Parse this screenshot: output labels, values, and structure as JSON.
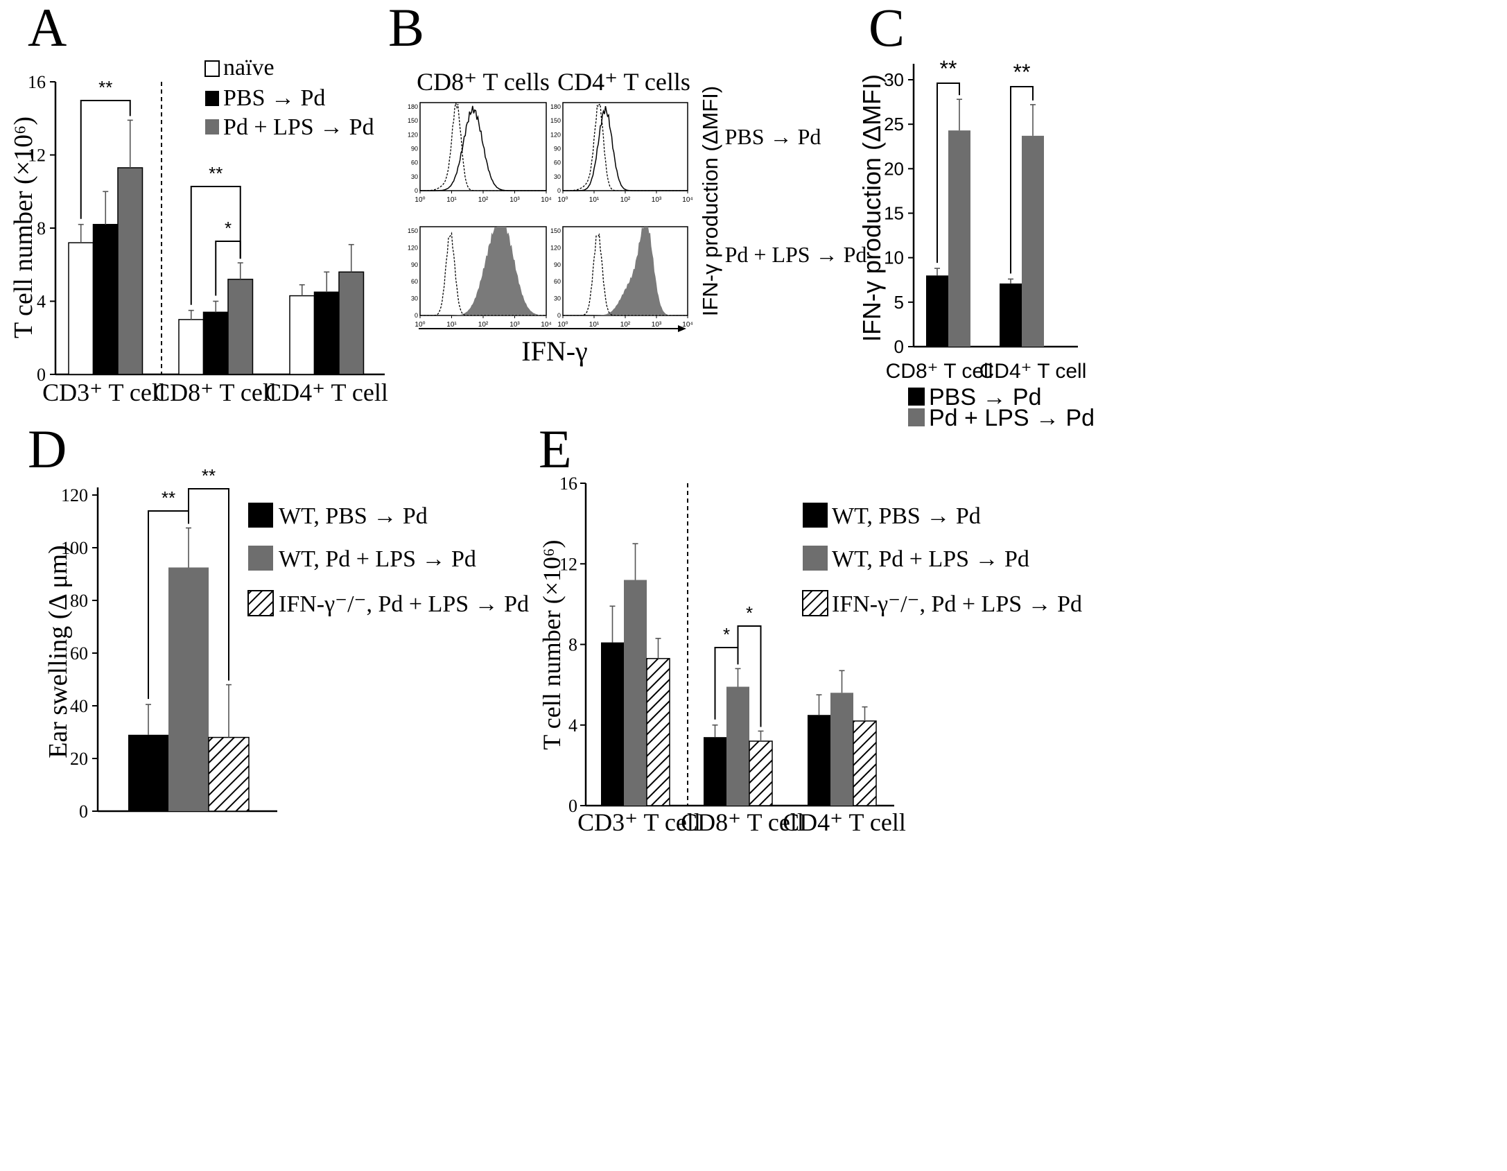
{
  "colors": {
    "naive": "#ffffff",
    "pbs": "#000000",
    "lps": "#6e6e6e",
    "ko": "hatch-diagonal"
  },
  "chart_data": [
    {
      "panel": "A",
      "type": "bar",
      "panel_label": "A",
      "ylabel": "T cell number (×10⁶)",
      "xlabel": "",
      "ylim": [
        0,
        16
      ],
      "yticks": [
        "0",
        "4",
        "8",
        "12",
        "16"
      ],
      "categories": [
        "CD3⁺ T cell",
        "CD8⁺ T cell",
        "CD4⁺ T cell"
      ],
      "legend": [
        "naïve",
        "PBS → Pd",
        "Pd + LPS → Pd"
      ],
      "series": [
        {
          "name": "naïve",
          "values": [
            7.2,
            3.0,
            4.3
          ],
          "errors": [
            1.0,
            0.5,
            0.6
          ]
        },
        {
          "name": "PBS → Pd",
          "values": [
            8.2,
            3.4,
            4.5
          ],
          "errors": [
            1.8,
            0.6,
            1.1
          ]
        },
        {
          "name": "Pd + LPS → Pd",
          "values": [
            11.3,
            5.2,
            5.6
          ],
          "errors": [
            2.6,
            0.9,
            1.5
          ]
        }
      ],
      "significance": [
        {
          "label": "**",
          "category": 0,
          "from": 0,
          "to": 2
        },
        {
          "label": "**",
          "category": 1,
          "from": 0,
          "to": 2
        },
        {
          "label": "*",
          "category": 1,
          "from": 1,
          "to": 2
        }
      ]
    },
    {
      "panel": "B",
      "type": "histogram",
      "panel_label": "B",
      "column_titles": [
        "CD8⁺ T cells",
        "CD4⁺ T cells"
      ],
      "row_labels": [
        "PBS → Pd",
        "Pd + LPS → Pd"
      ],
      "xlabel": "IFN-γ",
      "side_label": "IFN-γ production (ΔMFI)",
      "xticks": [
        "10⁰",
        "10¹",
        "10²",
        "10³",
        "10⁴"
      ],
      "yticks_top": [
        "0",
        "30",
        "60",
        "90",
        "120",
        "150",
        "180"
      ],
      "yticks_bottom": [
        "0",
        "30",
        "60",
        "90",
        "120",
        "150"
      ]
    },
    {
      "panel": "C",
      "type": "bar",
      "panel_label": "C",
      "ylabel": "IFN-γ production (ΔMFI)",
      "ylim": [
        0,
        30
      ],
      "yticks": [
        "0",
        "5",
        "10",
        "15",
        "20",
        "25",
        "30"
      ],
      "categories": [
        "CD8⁺ T cell",
        "CD4⁺ T cell"
      ],
      "legend": [
        "PBS → Pd",
        "Pd + LPS → Pd"
      ],
      "series": [
        {
          "name": "PBS → Pd",
          "values": [
            8.0,
            7.1
          ],
          "errors": [
            0.8,
            0.5
          ]
        },
        {
          "name": "Pd + LPS → Pd",
          "values": [
            24.3,
            23.7
          ],
          "errors": [
            3.5,
            3.5
          ]
        }
      ],
      "significance": [
        {
          "label": "**",
          "category": 0,
          "from": 0,
          "to": 1
        },
        {
          "label": "**",
          "category": 1,
          "from": 0,
          "to": 1
        }
      ]
    },
    {
      "panel": "D",
      "type": "bar",
      "panel_label": "D",
      "ylabel": "Ear swelling (Δ μm)",
      "ylim": [
        0,
        120
      ],
      "yticks": [
        "0",
        "20",
        "40",
        "60",
        "80",
        "100",
        "120"
      ],
      "categories": [
        ""
      ],
      "legend": [
        "WT, PBS → Pd",
        "WT, Pd + LPS → Pd",
        "IFN-γ⁻/⁻, Pd + LPS → Pd"
      ],
      "series": [
        {
          "name": "WT, PBS → Pd",
          "values": [
            29
          ],
          "errors": [
            11.5
          ]
        },
        {
          "name": "WT, Pd + LPS → Pd",
          "values": [
            92.5
          ],
          "errors": [
            15
          ]
        },
        {
          "name": "IFN-γ⁻/⁻, Pd + LPS → Pd",
          "values": [
            28
          ],
          "errors": [
            20
          ]
        }
      ],
      "significance": [
        {
          "label": "**",
          "category": 0,
          "from": 0,
          "to": 1
        },
        {
          "label": "**",
          "category": 0,
          "from": 1,
          "to": 2
        }
      ]
    },
    {
      "panel": "E",
      "type": "bar",
      "panel_label": "E",
      "ylabel": "T cell number (×10⁶)",
      "ylim": [
        0,
        16
      ],
      "yticks": [
        "0",
        "4",
        "8",
        "12",
        "16"
      ],
      "categories": [
        "CD3⁺ T cell",
        "CD8⁺ T cell",
        "CD4⁺ T cell"
      ],
      "legend": [
        "WT, PBS → Pd",
        "WT, Pd + LPS → Pd",
        "IFN-γ⁻/⁻, Pd + LPS → Pd"
      ],
      "series": [
        {
          "name": "WT, PBS → Pd",
          "values": [
            8.1,
            3.4,
            4.5
          ],
          "errors": [
            1.8,
            0.6,
            1.0
          ]
        },
        {
          "name": "WT, Pd + LPS → Pd",
          "values": [
            11.2,
            5.9,
            5.6
          ],
          "errors": [
            1.8,
            0.9,
            1.1
          ]
        },
        {
          "name": "IFN-γ⁻/⁻, Pd + LPS → Pd",
          "values": [
            7.3,
            3.2,
            4.2
          ],
          "errors": [
            1.0,
            0.5,
            0.7
          ]
        }
      ],
      "significance": [
        {
          "label": "*",
          "category": 1,
          "from": 0,
          "to": 1
        },
        {
          "label": "*",
          "category": 1,
          "from": 1,
          "to": 2
        }
      ]
    }
  ]
}
